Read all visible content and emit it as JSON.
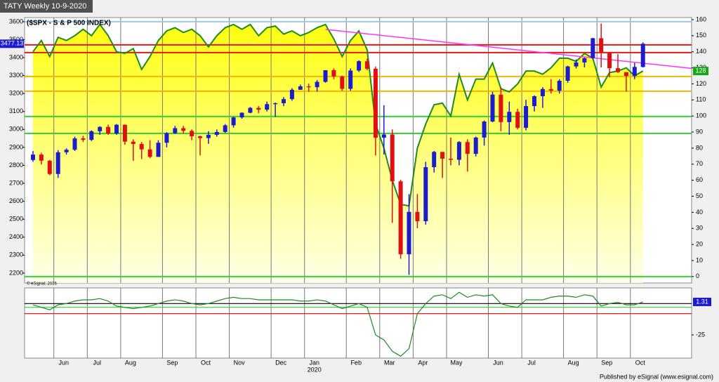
{
  "chart_data": {
    "type": "candlestick",
    "title": "TATY Weekly 10-9-2020",
    "subtitle": "($SPX - S & P 500 INDEX)",
    "copyright": "© eSignal, 2016",
    "footer": "Published by eSignal (www.esignal.com)",
    "categories": [
      null,
      null,
      null,
      "Jun",
      null,
      null,
      null,
      "Jul",
      null,
      null,
      null,
      "Aug",
      null,
      null,
      null,
      null,
      "Sep",
      null,
      null,
      null,
      "Oct",
      null,
      null,
      null,
      "Nov",
      null,
      null,
      null,
      null,
      "Dec",
      null,
      null,
      null,
      "Jan",
      null,
      null,
      null,
      null,
      "Feb",
      null,
      null,
      null,
      "Mar",
      null,
      null,
      null,
      "Apr",
      null,
      null,
      null,
      "May",
      null,
      null,
      null,
      null,
      "Jun",
      null,
      null,
      null,
      "Jul",
      null,
      null,
      null,
      null,
      "Aug",
      null,
      null,
      null,
      "Sep",
      null,
      null,
      null,
      "Oct",
      null
    ],
    "year_categories": [
      null,
      null,
      null,
      null,
      null,
      null,
      null,
      null,
      null,
      null,
      null,
      null,
      null,
      null,
      null,
      null,
      null,
      null,
      null,
      null,
      null,
      null,
      null,
      null,
      null,
      null,
      null,
      null,
      null,
      null,
      null,
      null,
      null,
      "2020",
      null,
      null,
      null,
      null,
      null,
      null,
      null,
      null,
      null,
      null,
      null,
      null,
      null,
      null,
      null,
      null,
      null,
      null,
      null,
      null,
      null,
      null,
      null,
      null,
      null,
      null,
      null,
      null,
      null,
      null,
      null,
      null,
      null,
      null,
      null,
      null,
      null,
      null,
      null,
      null
    ],
    "open": [
      2830,
      2860,
      2826,
      2752,
      2873,
      2887,
      2950,
      2942,
      2990,
      3014,
      2977,
      3026,
      2932,
      2919,
      2889,
      2847,
      2926,
      2979,
      3007,
      2992,
      2962,
      2952,
      2970,
      2986,
      3023,
      3067,
      3093,
      3120,
      3110,
      3141,
      3146,
      3169,
      3221,
      3240,
      3235,
      3265,
      3330,
      3295,
      3226,
      3328,
      3380,
      3338,
      2954,
      2972,
      2711,
      2305,
      2541,
      2489,
      2790,
      2875,
      2837,
      2831,
      2930,
      2864,
      2955,
      3044,
      3194,
      3041,
      3098,
      3009,
      3130,
      3185,
      3225,
      3216,
      3271,
      3351,
      3373,
      3397,
      3508,
      3427,
      3341,
      3319,
      3298,
      3348
    ],
    "high": [
      2880,
      2870,
      2830,
      2885,
      2895,
      2960,
      2965,
      2995,
      3018,
      3027,
      3030,
      3028,
      2945,
      2930,
      2940,
      2940,
      2985,
      3020,
      3020,
      3000,
      2965,
      2990,
      3000,
      3030,
      3070,
      3095,
      3125,
      3130,
      3155,
      3150,
      3180,
      3230,
      3250,
      3255,
      3275,
      3330,
      3340,
      3300,
      3340,
      3385,
      3395,
      3350,
      3135,
      3000,
      2720,
      2640,
      2640,
      2820,
      2880,
      2870,
      2955,
      2935,
      2945,
      2960,
      3050,
      3210,
      3235,
      3155,
      3115,
      3165,
      3190,
      3235,
      3280,
      3280,
      3355,
      3390,
      3400,
      3510,
      3590,
      3430,
      3420,
      3320,
      3370,
      3485
    ],
    "low": [
      2820,
      2805,
      2745,
      2730,
      2860,
      2880,
      2930,
      2935,
      2970,
      2970,
      2970,
      2915,
      2825,
      2835,
      2840,
      2850,
      2900,
      2975,
      2978,
      2940,
      2855,
      2920,
      2960,
      2980,
      3010,
      3060,
      3090,
      3090,
      3100,
      3070,
      3130,
      3160,
      3220,
      3210,
      3210,
      3260,
      3280,
      3215,
      3215,
      3320,
      3330,
      2855,
      2860,
      2480,
      2280,
      2190,
      2450,
      2470,
      2760,
      2730,
      2800,
      2800,
      2765,
      2850,
      2910,
      3040,
      2990,
      2970,
      3000,
      2995,
      3100,
      3120,
      3200,
      3200,
      3260,
      3340,
      3345,
      3390,
      3345,
      3290,
      3315,
      3210,
      3280,
      3345
    ],
    "close": [
      2860,
      2826,
      2752,
      2873,
      2887,
      2950,
      2942,
      2990,
      3014,
      2977,
      3026,
      2932,
      2919,
      2889,
      2847,
      2926,
      2979,
      3007,
      2992,
      2962,
      2952,
      2970,
      2986,
      3023,
      3067,
      3093,
      3120,
      3110,
      3141,
      3146,
      3169,
      3221,
      3240,
      3235,
      3265,
      3330,
      3295,
      3226,
      3328,
      3380,
      3338,
      2954,
      2972,
      2711,
      2305,
      2541,
      2489,
      2790,
      2875,
      2837,
      2831,
      2930,
      2864,
      2955,
      3044,
      3194,
      3041,
      3098,
      3009,
      3130,
      3185,
      3225,
      3216,
      3271,
      3351,
      3373,
      3397,
      3508,
      3427,
      3341,
      3319,
      3298,
      3348,
      3477.13
    ],
    "up_color": "#1c1ccf",
    "down_color": "#e01010",
    "ylim": [
      2145,
      3623
    ],
    "yticks": [
      2200,
      2300,
      2400,
      2500,
      2600,
      2700,
      2800,
      2900,
      3000,
      3100,
      3200,
      3300,
      3400,
      3500,
      3600
    ],
    "y2lim": [
      -4,
      161.3
    ],
    "y2ticks": [
      0,
      10,
      20,
      30,
      40,
      50,
      60,
      70,
      80,
      90,
      100,
      110,
      120,
      130,
      140,
      150,
      160
    ],
    "indicator": {
      "color": "#1f8a1f",
      "axis": "y2",
      "values": [
        140,
        147,
        137,
        149,
        147,
        150,
        154,
        150,
        157,
        150,
        140,
        139,
        142,
        129,
        137,
        147,
        153,
        155,
        152,
        154,
        150,
        143,
        150,
        155,
        157,
        154,
        157,
        150,
        155,
        156,
        151,
        153,
        150,
        152,
        155,
        157,
        148,
        137,
        147,
        153,
        141,
        95,
        80,
        60,
        45,
        44,
        80,
        95,
        107,
        108,
        100,
        126,
        110,
        123,
        123,
        133,
        117,
        115,
        120,
        128,
        128,
        126,
        130,
        136,
        136,
        134,
        139,
        136,
        118,
        127,
        128,
        130,
        125,
        128
      ]
    },
    "levels": [
      {
        "value": 3600,
        "color": "#9cc8ee"
      },
      {
        "value": 3471,
        "color": "#e81818"
      },
      {
        "value": 3428,
        "color": "#e81818"
      },
      {
        "value": 3295,
        "color": "#f5b400"
      },
      {
        "value": 3213,
        "color": "#f5b400"
      },
      {
        "value": 3072,
        "color": "#33d433"
      },
      {
        "value": 2978,
        "color": "#33d433"
      },
      {
        "value": 0,
        "axis": "y2",
        "color": "#33d433"
      }
    ],
    "trendline": {
      "color": "#ff33ff",
      "values": [
        3557,
        3340
      ]
    },
    "oscillator": {
      "color": "#1f8a1f",
      "values": [
        -1,
        -3,
        -5,
        -1,
        0,
        2,
        3,
        3,
        4,
        2,
        -2,
        -3,
        -4,
        -3,
        -2,
        0,
        2,
        3,
        2,
        0,
        -1,
        0,
        2,
        4,
        5,
        4,
        4,
        3,
        3,
        3,
        3,
        3,
        2,
        2,
        3,
        2,
        -1,
        -4,
        -2,
        0,
        -3,
        -25,
        -29,
        -38,
        -42,
        -36,
        -8,
        0,
        6,
        7,
        4,
        9,
        5,
        7,
        6,
        7,
        0,
        -2,
        -3,
        3,
        3,
        3,
        5,
        6,
        6,
        5,
        7,
        6,
        -2,
        0,
        1,
        -1,
        -1,
        1.31
      ]
    },
    "osc_ylim": [
      -43.5,
      12.5
    ],
    "osc_yticks": [
      -25
    ],
    "osc_levels": [
      {
        "value": 0,
        "color": "#000000"
      },
      {
        "value": -3,
        "color": "#33d433"
      },
      {
        "value": -8,
        "color": "#e81818"
      }
    ]
  }
}
